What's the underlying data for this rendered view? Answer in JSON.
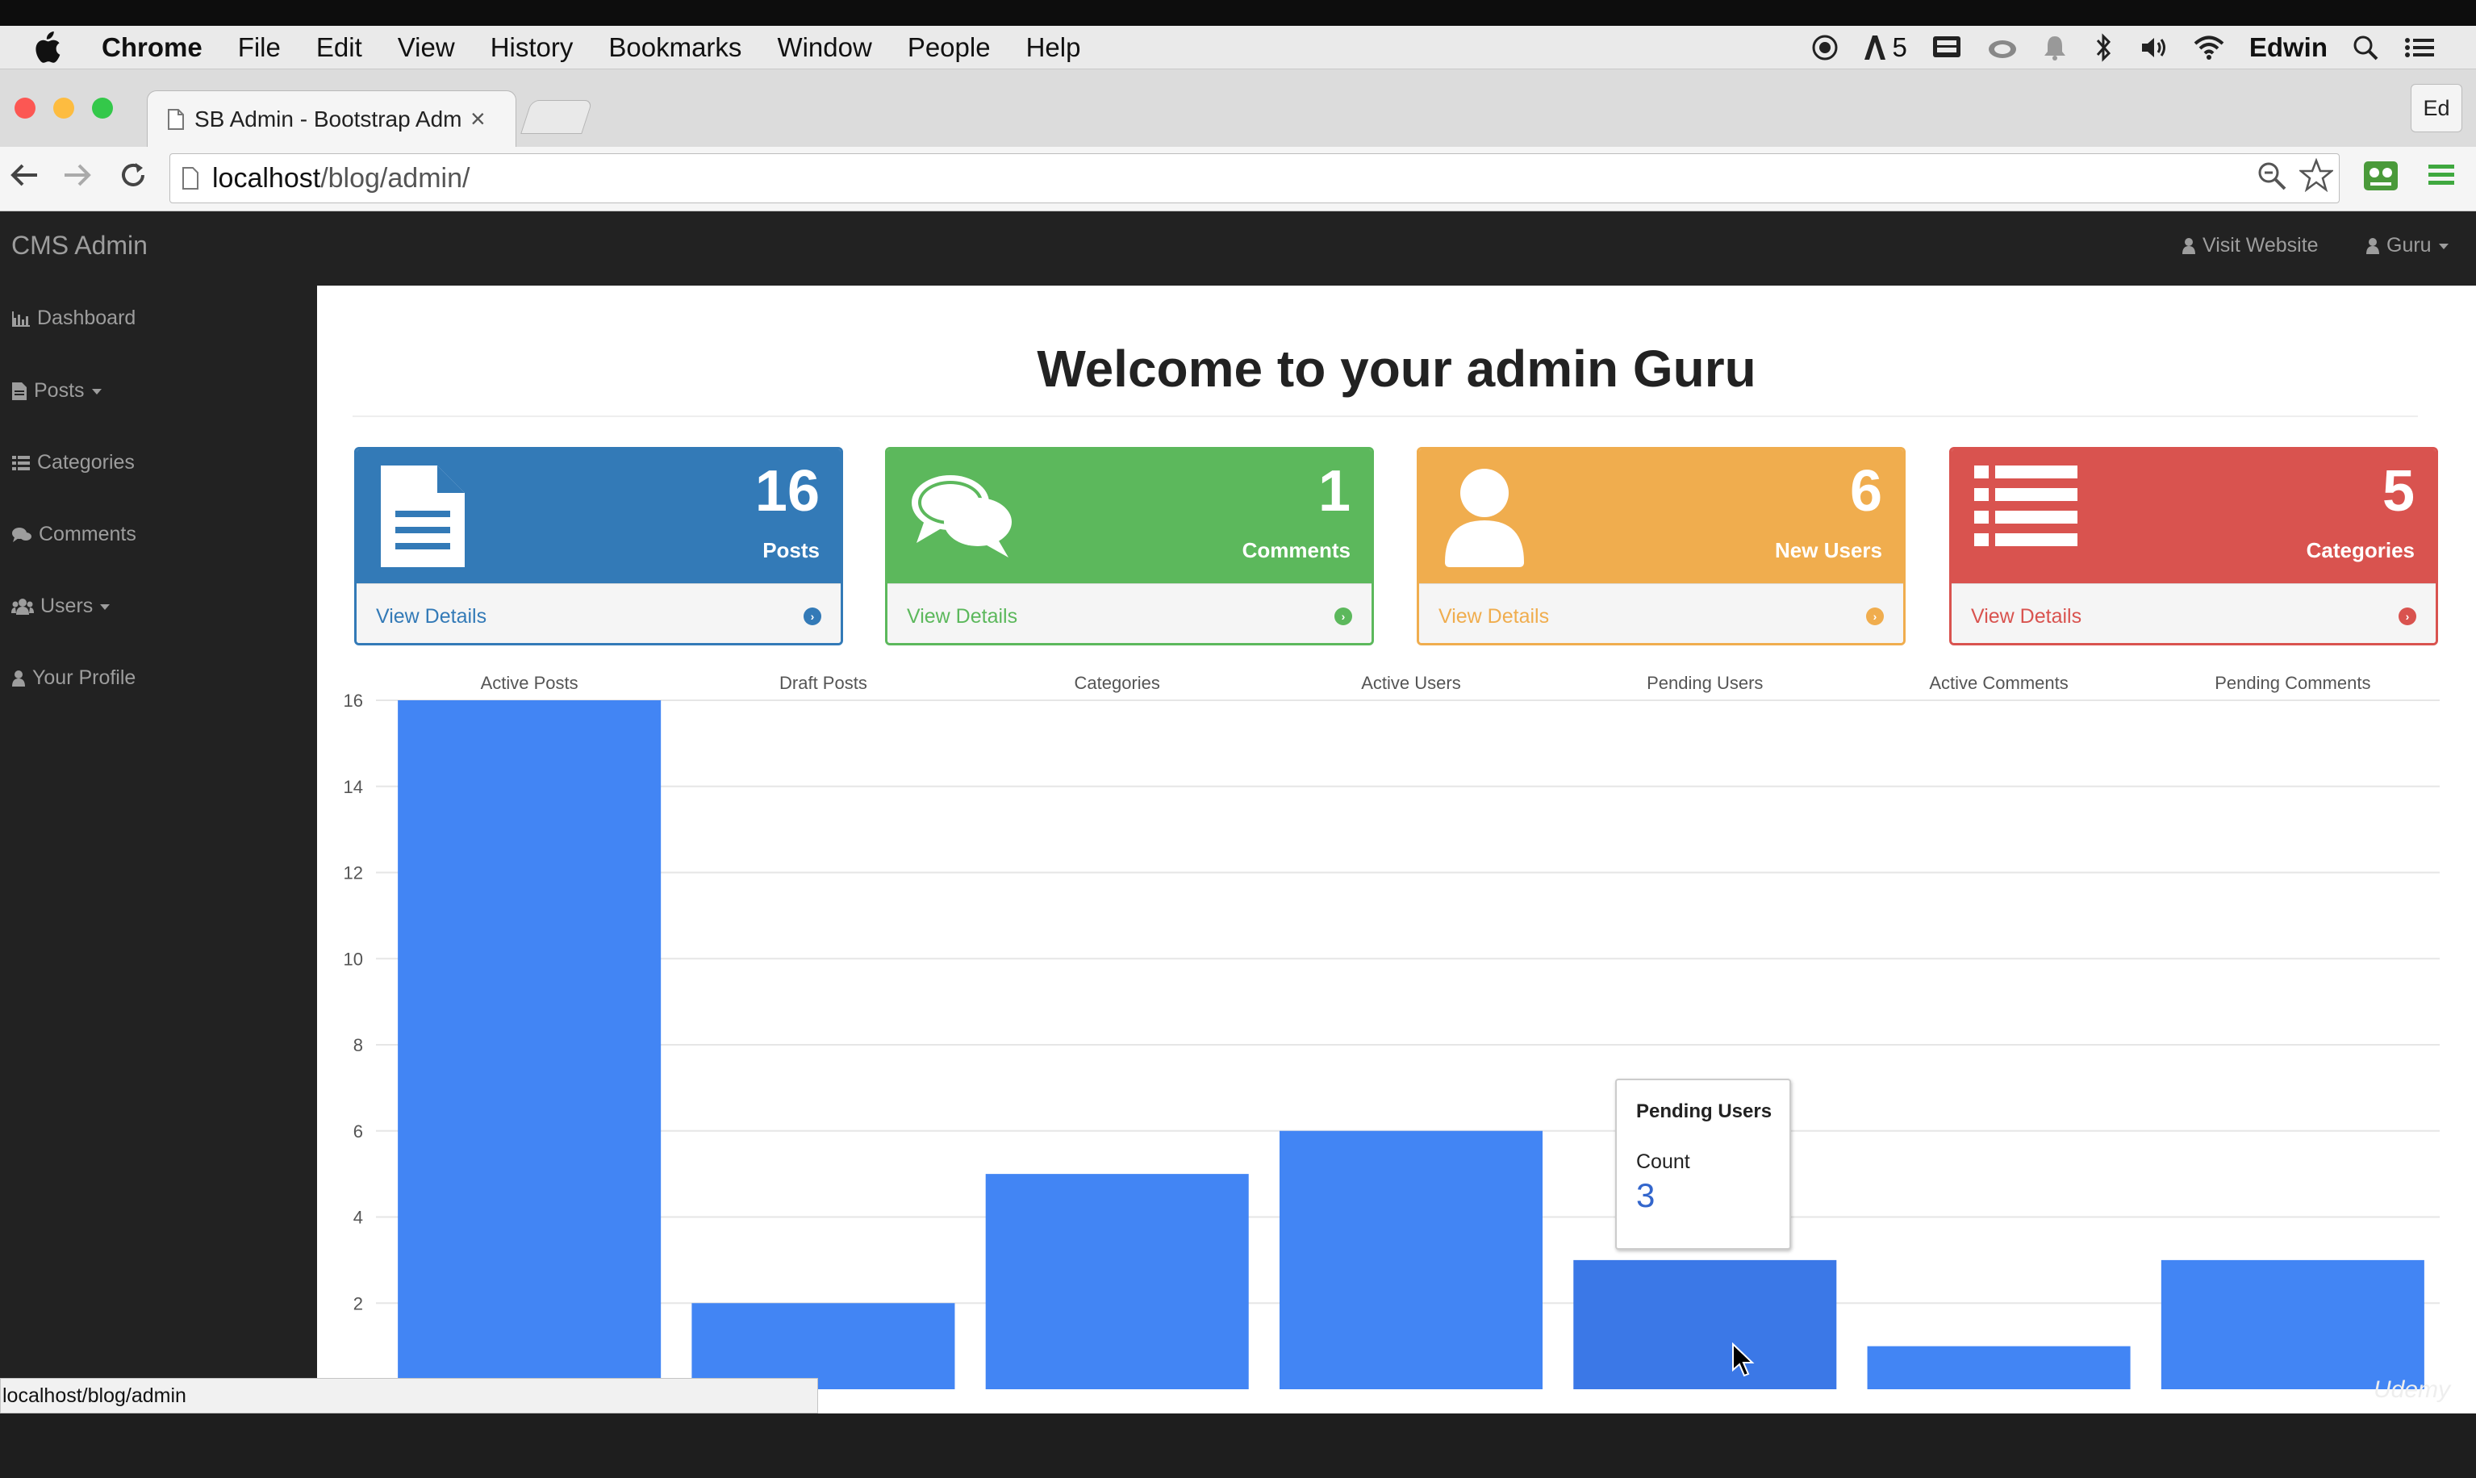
{
  "menubar": {
    "app": "Chrome",
    "items": [
      "File",
      "Edit",
      "View",
      "History",
      "Bookmarks",
      "Window",
      "People",
      "Help"
    ],
    "adobe_badge": "5",
    "user": "Edwin"
  },
  "browser": {
    "tab_title": "SB Admin - Bootstrap Adm",
    "tab_close": "×",
    "profile_button": "Ed",
    "url_host": "localhost",
    "url_path": "/blog/admin/",
    "status_url": "localhost/blog/admin"
  },
  "navbar": {
    "brand": "CMS Admin",
    "visit_website": "Visit Website",
    "user_menu": "Guru"
  },
  "sidebar": {
    "items": [
      {
        "label": "Dashboard",
        "icon": "bar-chart-icon"
      },
      {
        "label": "Posts",
        "icon": "file-icon"
      },
      {
        "label": "Categories",
        "icon": "list-icon"
      },
      {
        "label": "Comments",
        "icon": "comments-icon"
      },
      {
        "label": "Users",
        "icon": "users-icon"
      },
      {
        "label": "Your Profile",
        "icon": "user-icon"
      }
    ]
  },
  "page": {
    "title": "Welcome to your admin Guru"
  },
  "panels": [
    {
      "count": "16",
      "label": "Posts",
      "footer": "View Details",
      "color": "#337ab7"
    },
    {
      "count": "1",
      "label": "Comments",
      "footer": "View Details",
      "color": "#5cb85c"
    },
    {
      "count": "6",
      "label": "New Users",
      "footer": "View Details",
      "color": "#f0ad4e"
    },
    {
      "count": "5",
      "label": "Categories",
      "footer": "View Details",
      "color": "#d9534f"
    }
  ],
  "chart_data": {
    "type": "bar",
    "categories": [
      "Active Posts",
      "Draft Posts",
      "Categories",
      "Active Users",
      "Pending Users",
      "Active Comments",
      "Pending Comments"
    ],
    "values": [
      16,
      2,
      5,
      6,
      3,
      1,
      3
    ],
    "series": [
      {
        "name": "Count",
        "values": [
          16,
          2,
          5,
          6,
          3,
          1,
          3
        ]
      }
    ],
    "yticks": [
      2,
      4,
      6,
      8,
      10,
      12,
      14,
      16
    ],
    "ylim": [
      0,
      16
    ],
    "legend": "top",
    "bar_color": "#4285f4",
    "highlight_color": "#3b78e7",
    "highlight_index": 4
  },
  "tooltip": {
    "title": "Pending Users",
    "label": "Count",
    "value": "3"
  },
  "watermark": "Udemy"
}
